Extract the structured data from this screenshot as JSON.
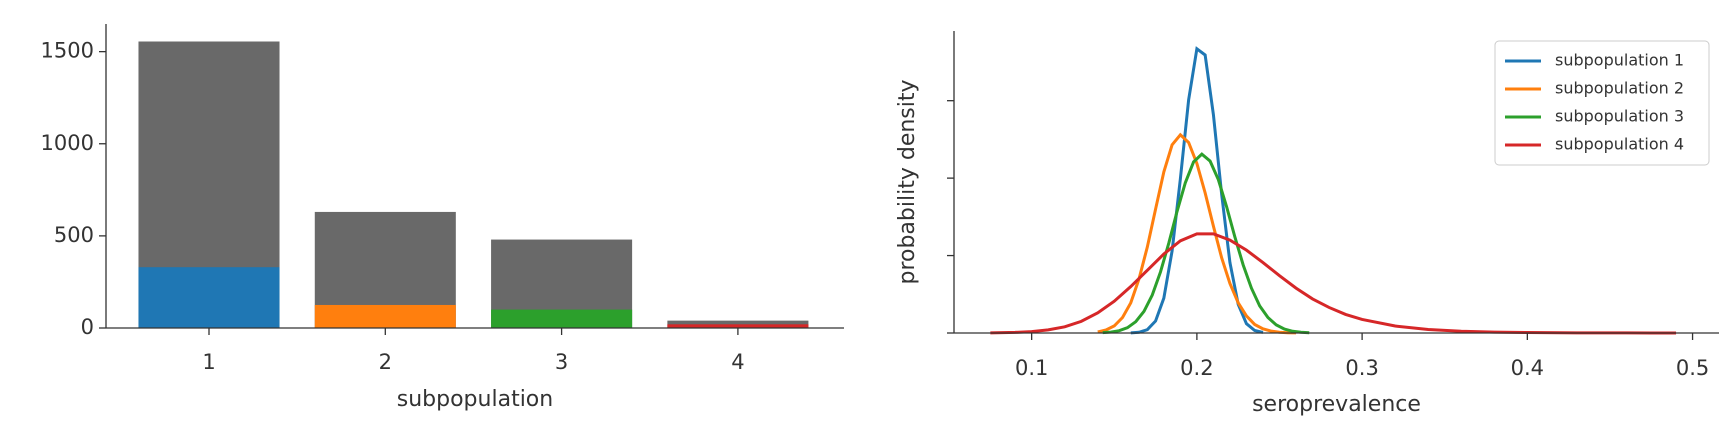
{
  "chart_data": [
    {
      "type": "bar",
      "xlabel": "subpopulation",
      "categories": [
        "1",
        "2",
        "3",
        "4"
      ],
      "series": [
        {
          "color": "#696969",
          "values": [
            1555,
            630,
            480,
            40
          ]
        },
        {
          "colors": [
            "#1f77b4",
            "#ff7f0e",
            "#2ca02c",
            "#d62728"
          ],
          "values": [
            330,
            125,
            100,
            20
          ]
        }
      ],
      "ylim": [
        0,
        1650
      ],
      "yticks": [
        0,
        500,
        1000,
        1500
      ]
    },
    {
      "type": "line",
      "xlabel": "seroprevalence",
      "ylabel": "probability density",
      "series": [
        {
          "name": "subpopulation 1",
          "color": "#1f77b4",
          "x": [
            0.16,
            0.165,
            0.17,
            0.175,
            0.18,
            0.185,
            0.19,
            0.195,
            0.2,
            0.205,
            0.21,
            0.215,
            0.22,
            0.225,
            0.23,
            0.235,
            0.24
          ],
          "values": [
            0.02,
            0.09,
            0.43,
            1.55,
            4.5,
            10.6,
            19.9,
            30.1,
            36.7,
            35.9,
            28.2,
            17.9,
            9.1,
            3.7,
            1.2,
            0.32,
            0.07
          ]
        },
        {
          "name": "subpopulation 2",
          "color": "#ff7f0e",
          "x": [
            0.14,
            0.145,
            0.15,
            0.155,
            0.16,
            0.165,
            0.17,
            0.175,
            0.18,
            0.185,
            0.19,
            0.195,
            0.2,
            0.205,
            0.21,
            0.215,
            0.22,
            0.225,
            0.23,
            0.235,
            0.24,
            0.245,
            0.25,
            0.255,
            0.26
          ],
          "values": [
            0.14,
            0.39,
            0.92,
            2.0,
            3.9,
            7.0,
            11.1,
            16.0,
            20.8,
            24.3,
            25.6,
            24.6,
            21.9,
            18.1,
            13.8,
            9.7,
            6.4,
            3.9,
            2.2,
            1.1,
            0.54,
            0.24,
            0.1,
            0.04,
            0.01
          ]
        },
        {
          "name": "subpopulation 3",
          "color": "#2ca02c",
          "x": [
            0.143,
            0.148,
            0.153,
            0.158,
            0.163,
            0.168,
            0.173,
            0.178,
            0.183,
            0.188,
            0.193,
            0.198,
            0.203,
            0.208,
            0.213,
            0.218,
            0.223,
            0.228,
            0.233,
            0.238,
            0.243,
            0.248,
            0.253,
            0.258,
            0.263,
            0.268
          ],
          "values": [
            0.05,
            0.12,
            0.3,
            0.69,
            1.46,
            2.8,
            4.9,
            7.9,
            11.6,
            15.7,
            19.4,
            22.1,
            23.1,
            22.2,
            19.8,
            16.3,
            12.4,
            8.8,
            5.8,
            3.5,
            2.0,
            1.05,
            0.5,
            0.22,
            0.09,
            0.03
          ]
        },
        {
          "name": "subpopulation 4",
          "color": "#d62728",
          "x": [
            0.075,
            0.09,
            0.1,
            0.11,
            0.12,
            0.13,
            0.14,
            0.15,
            0.16,
            0.17,
            0.18,
            0.19,
            0.2,
            0.21,
            0.22,
            0.23,
            0.24,
            0.25,
            0.26,
            0.27,
            0.28,
            0.29,
            0.3,
            0.32,
            0.34,
            0.36,
            0.38,
            0.4,
            0.43,
            0.46,
            0.49
          ],
          "values": [
            0.02,
            0.08,
            0.18,
            0.4,
            0.8,
            1.5,
            2.6,
            4.1,
            6.0,
            8.1,
            10.2,
            11.9,
            12.8,
            12.8,
            12.0,
            10.7,
            9.1,
            7.4,
            5.8,
            4.4,
            3.3,
            2.4,
            1.75,
            0.9,
            0.45,
            0.22,
            0.11,
            0.06,
            0.02,
            0.01,
            0.0
          ]
        }
      ],
      "xlim": [
        0.053,
        0.516
      ],
      "xticks": [
        0.1,
        0.2,
        0.3,
        0.4,
        0.5
      ],
      "ylim": [
        0,
        39
      ],
      "yticks": [
        0,
        10,
        20,
        30
      ],
      "legend": "upper right"
    }
  ]
}
